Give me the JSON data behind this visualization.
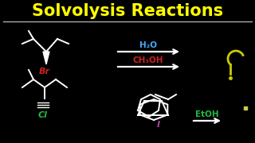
{
  "title": "Solvolysis Reactions",
  "title_color": "#FFFF00",
  "bg_color": "#000000",
  "title_fontsize": 15,
  "h2o_text": "H₂O",
  "h2o_color": "#44AAFF",
  "ch3oh_text": "CH₃OH",
  "ch3oh_color": "#CC2222",
  "etoh_text": "EtOH",
  "etoh_color": "#22BB44",
  "br_text": "Br",
  "br_color": "#CC2222",
  "cl_text": "Cl",
  "cl_color": "#22BB44",
  "i_text": "I",
  "i_color": "#AA44AA",
  "question_mark_color": "#CCCC00",
  "arrow_color": "#FFFFFF",
  "struct_color": "#FFFFFF",
  "small_dot_color": "#CCCC44",
  "line_color": "#AAAAAA"
}
